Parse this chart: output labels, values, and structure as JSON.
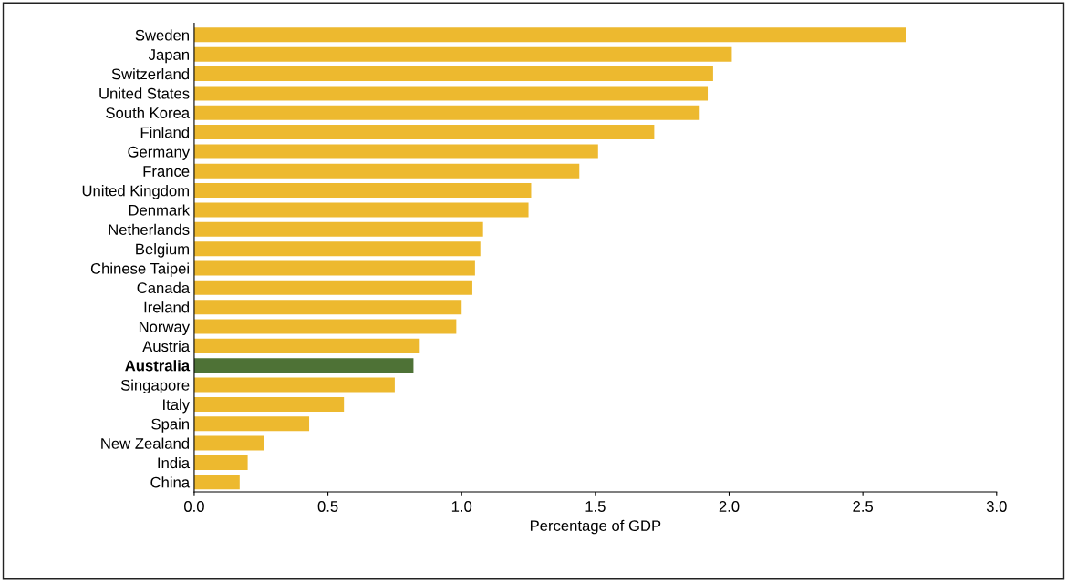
{
  "chart_data": {
    "type": "bar",
    "orientation": "horizontal",
    "xlabel": "Percentage of GDP",
    "categories": [
      "Sweden",
      "Japan",
      "Switzerland",
      "United States",
      "South Korea",
      "Finland",
      "Germany",
      "France",
      "United Kingdom",
      "Denmark",
      "Netherlands",
      "Belgium",
      "Chinese Taipei",
      "Canada",
      "Ireland",
      "Norway",
      "Austria",
      "Australia",
      "Singapore",
      "Italy",
      "Spain",
      "New Zealand",
      "India",
      "China"
    ],
    "values": [
      2.66,
      2.01,
      1.94,
      1.92,
      1.89,
      1.72,
      1.51,
      1.44,
      1.26,
      1.25,
      1.08,
      1.07,
      1.05,
      1.04,
      1.0,
      0.98,
      0.84,
      0.82,
      0.75,
      0.56,
      0.43,
      0.26,
      0.2,
      0.17
    ],
    "colors": [
      "#edb92f",
      "#edb92f",
      "#edb92f",
      "#edb92f",
      "#edb92f",
      "#edb92f",
      "#edb92f",
      "#edb92f",
      "#edb92f",
      "#edb92f",
      "#edb92f",
      "#edb92f",
      "#edb92f",
      "#edb92f",
      "#edb92f",
      "#edb92f",
      "#edb92f",
      "#4e7236",
      "#edb92f",
      "#edb92f",
      "#edb92f",
      "#edb92f",
      "#edb92f",
      "#edb92f"
    ],
    "xlim": [
      0,
      3
    ],
    "xticks": [
      {
        "value": 0,
        "label": "0.0"
      },
      {
        "value": 0.5,
        "label": "0.5"
      },
      {
        "value": 1,
        "label": "1.0"
      },
      {
        "value": 1.5,
        "label": "1.5"
      },
      {
        "value": 2,
        "label": "2.0"
      },
      {
        "value": 2.5,
        "label": "2.5"
      },
      {
        "value": 3,
        "label": "3.0"
      }
    ],
    "grid": false
  }
}
